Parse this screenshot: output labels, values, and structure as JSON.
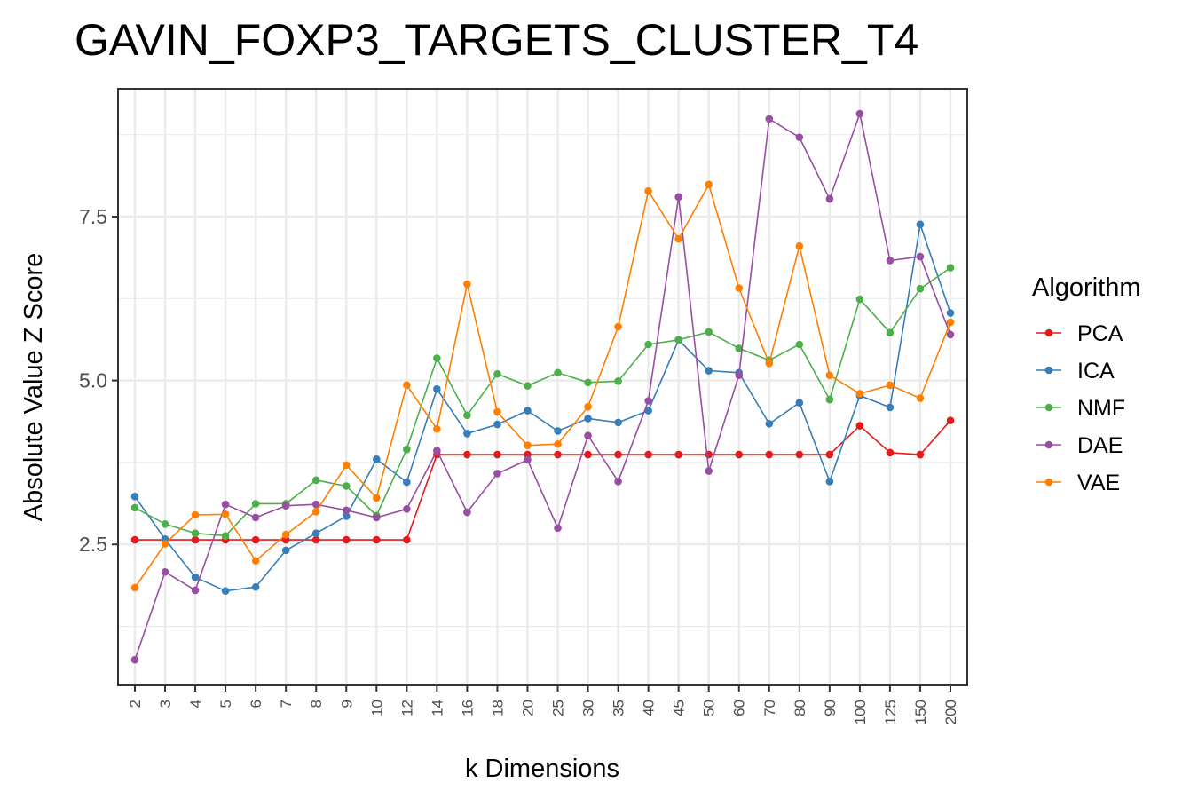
{
  "chart_data": {
    "type": "line",
    "title": "GAVIN_FOXP3_TARGETS_CLUSTER_T4",
    "xlabel": "k Dimensions",
    "ylabel": "Absolute Value Z Score",
    "categories": [
      "2",
      "3",
      "4",
      "5",
      "6",
      "7",
      "8",
      "9",
      "10",
      "12",
      "14",
      "16",
      "18",
      "20",
      "25",
      "30",
      "35",
      "40",
      "45",
      "50",
      "60",
      "70",
      "80",
      "90",
      "100",
      "125",
      "150",
      "200"
    ],
    "ylim": [
      0.35,
      9.45
    ],
    "yticks": [
      2.5,
      5.0,
      7.5
    ],
    "ytick_labels": [
      "2.5",
      "5.0",
      "7.5"
    ],
    "grid": true,
    "legend_title": "Algorithm",
    "legend_position": "right",
    "series": [
      {
        "name": "PCA",
        "color": "#e41a1c",
        "values": [
          2.57,
          2.57,
          2.57,
          2.57,
          2.57,
          2.57,
          2.57,
          2.57,
          2.57,
          2.57,
          3.87,
          3.87,
          3.87,
          3.87,
          3.87,
          3.87,
          3.87,
          3.87,
          3.87,
          3.87,
          3.87,
          3.87,
          3.87,
          3.87,
          4.31,
          3.9,
          3.87,
          4.39
        ]
      },
      {
        "name": "ICA",
        "color": "#377eb8",
        "values": [
          3.23,
          2.58,
          2.0,
          1.79,
          1.85,
          2.41,
          2.67,
          2.93,
          3.8,
          3.45,
          4.87,
          4.19,
          4.33,
          4.54,
          4.23,
          4.42,
          4.36,
          4.54,
          5.62,
          5.15,
          5.12,
          4.34,
          4.66,
          3.46,
          4.77,
          4.59,
          7.38,
          6.03
        ]
      },
      {
        "name": "NMF",
        "color": "#4daf4a",
        "values": [
          3.06,
          2.81,
          2.67,
          2.63,
          3.12,
          3.12,
          3.48,
          3.39,
          2.94,
          3.95,
          5.34,
          4.47,
          5.1,
          4.92,
          5.12,
          4.97,
          4.99,
          5.55,
          5.62,
          5.74,
          5.49,
          5.31,
          5.55,
          4.71,
          6.24,
          5.73,
          6.4,
          6.72
        ]
      },
      {
        "name": "DAE",
        "color": "#984ea3",
        "values": [
          0.74,
          2.08,
          1.8,
          3.11,
          2.91,
          3.09,
          3.11,
          3.02,
          2.91,
          3.04,
          3.93,
          2.99,
          3.58,
          3.79,
          2.75,
          4.16,
          3.46,
          4.69,
          7.8,
          3.62,
          5.08,
          8.99,
          8.71,
          7.77,
          9.07,
          6.83,
          6.89,
          5.7
        ]
      },
      {
        "name": "VAE",
        "color": "#ff7f00",
        "values": [
          1.84,
          2.51,
          2.95,
          2.96,
          2.25,
          2.65,
          3.0,
          3.71,
          3.21,
          4.93,
          4.26,
          6.47,
          4.52,
          4.01,
          4.03,
          4.6,
          5.82,
          7.89,
          7.16,
          7.99,
          6.41,
          5.26,
          7.05,
          5.08,
          4.8,
          4.93,
          4.73,
          5.89
        ]
      }
    ]
  }
}
